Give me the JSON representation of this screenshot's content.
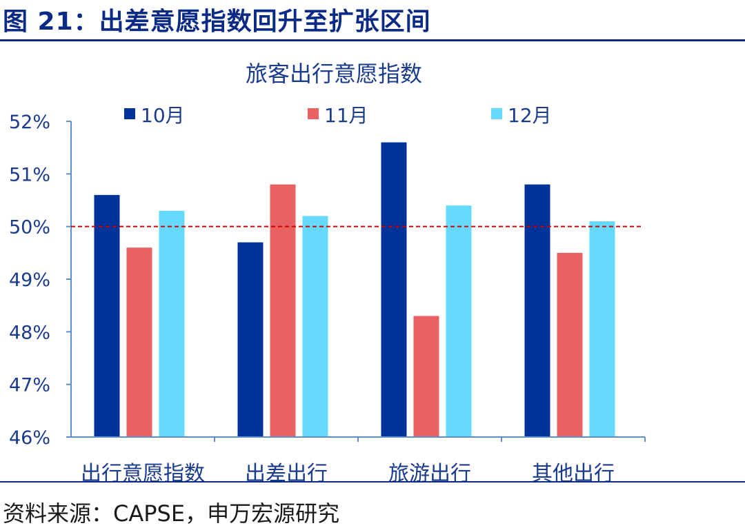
{
  "figure_title": "图 21：出差意愿指数回升至扩张区间",
  "source": "资料来源：CAPSE，申万宏源研究",
  "chart_data": {
    "type": "bar",
    "title": "旅客出行意愿指数",
    "categories": [
      "出行意愿指数",
      "出差出行",
      "旅游出行",
      "其他出行"
    ],
    "series": [
      {
        "name": "10月",
        "color": "#003399",
        "values": [
          50.6,
          49.7,
          51.6,
          50.8
        ]
      },
      {
        "name": "11月",
        "color": "#E86262",
        "values": [
          49.6,
          50.8,
          48.3,
          49.5
        ]
      },
      {
        "name": "12月",
        "color": "#66D9FF",
        "values": [
          50.3,
          50.2,
          50.4,
          50.1
        ]
      }
    ],
    "ylim": [
      46,
      52
    ],
    "yticks": [
      "46%",
      "47%",
      "48%",
      "49%",
      "50%",
      "51%",
      "52%"
    ],
    "reference_line": {
      "value": 50,
      "color": "#CC0000",
      "style": "dashed"
    },
    "legend": "top",
    "grid": false
  }
}
